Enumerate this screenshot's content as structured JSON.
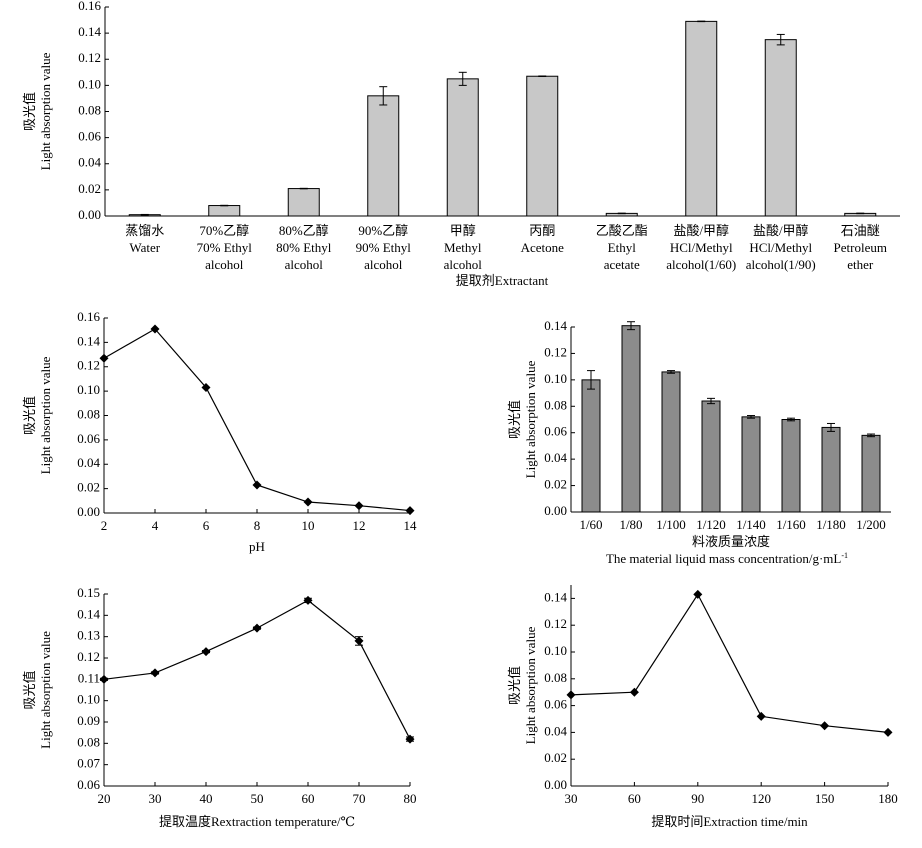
{
  "chart_data": [
    {
      "type": "bar",
      "title": "",
      "xlabel": "提取剂Extractant",
      "ylabel_cn": "吸光值",
      "ylabel": "Light absorption value",
      "ylim": [
        0,
        0.16
      ],
      "yticks": [
        "0.00",
        "0.02",
        "0.04",
        "0.06",
        "0.08",
        "0.10",
        "0.12",
        "0.14",
        "0.16"
      ],
      "bar_color": "#c8c8c8",
      "categories": [
        [
          "蒸馏水",
          "Water"
        ],
        [
          "70%乙醇",
          "70% Ethyl",
          "alcohol"
        ],
        [
          "80%乙醇",
          "80% Ethyl",
          "alcohol"
        ],
        [
          "90%乙醇",
          "90% Ethyl",
          "alcohol"
        ],
        [
          "甲醇",
          "Methyl",
          "alcohol"
        ],
        [
          "丙酮",
          "Acetone"
        ],
        [
          "乙酸乙酯",
          "Ethyl",
          "acetate"
        ],
        [
          "盐酸/甲醇",
          "HCl/Methyl",
          "alcohol(1/60)"
        ],
        [
          "盐酸/甲醇",
          "HCl/Methyl",
          "alcohol(1/90)"
        ],
        [
          "石油醚",
          "Petroleum",
          "ether"
        ]
      ],
      "values": [
        0.001,
        0.008,
        0.021,
        0.092,
        0.105,
        0.107,
        0.002,
        0.149,
        0.135,
        0.002
      ],
      "errors": [
        0.0005,
        0.0008,
        0.0008,
        0.007,
        0.005,
        0.0008,
        0.0003,
        0.0008,
        0.004,
        0.0008
      ]
    },
    {
      "type": "line",
      "xlabel": "pH",
      "ylabel_cn": "吸光值",
      "ylabel": "Light absorption value",
      "xlim": [
        2,
        14
      ],
      "ylim": [
        0,
        0.16
      ],
      "xticks": [
        "2",
        "4",
        "6",
        "8",
        "10",
        "12",
        "14"
      ],
      "yticks": [
        "0.00",
        "0.02",
        "0.04",
        "0.06",
        "0.08",
        "0.10",
        "0.12",
        "0.14",
        "0.16"
      ],
      "x": [
        2,
        4,
        6,
        8,
        10,
        12,
        14
      ],
      "values": [
        0.127,
        0.151,
        0.103,
        0.023,
        0.009,
        0.006,
        0.002
      ]
    },
    {
      "type": "bar",
      "xlabel_cn": "料液质量浓度",
      "xlabel": "The material liquid mass concentration/g·mL",
      "xlabel_sup": "-1",
      "ylabel_cn": "吸光值",
      "ylabel": "Light absorption value",
      "ylim": [
        0,
        0.14
      ],
      "yticks": [
        "0.00",
        "0.02",
        "0.04",
        "0.06",
        "0.08",
        "0.10",
        "0.12",
        "0.14"
      ],
      "bar_color": "#8c8c8c",
      "categories": [
        "1/60",
        "1/80",
        "1/100",
        "1/120",
        "1/140",
        "1/160",
        "1/180",
        "1/200"
      ],
      "values": [
        0.1,
        0.141,
        0.106,
        0.084,
        0.072,
        0.07,
        0.064,
        0.058
      ],
      "errors": [
        0.007,
        0.003,
        0.001,
        0.002,
        0.001,
        0.001,
        0.003,
        0.001
      ]
    },
    {
      "type": "line",
      "xlabel": "提取温度Rextraction temperature/℃",
      "ylabel_cn": "吸光值",
      "ylabel": "Light absorption value",
      "xlim": [
        20,
        80
      ],
      "ylim": [
        0.06,
        0.15
      ],
      "xticks": [
        "20",
        "30",
        "40",
        "50",
        "60",
        "70",
        "80"
      ],
      "yticks": [
        "0.06",
        "0.07",
        "0.08",
        "0.09",
        "0.10",
        "0.11",
        "0.12",
        "0.13",
        "0.14",
        "0.15"
      ],
      "x": [
        20,
        30,
        40,
        50,
        60,
        70,
        80
      ],
      "values": [
        0.11,
        0.113,
        0.123,
        0.134,
        0.147,
        0.128,
        0.082
      ],
      "errors": [
        0.0005,
        0.0005,
        0.0005,
        0.0005,
        0.001,
        0.002,
        0.001
      ]
    },
    {
      "type": "line",
      "xlabel": "提取时间Extraction time/min",
      "ylabel_cn": "吸光值",
      "ylabel": "Light absorption value",
      "xlim": [
        30,
        180
      ],
      "ylim": [
        0,
        0.15
      ],
      "xticks": [
        "30",
        "60",
        "90",
        "120",
        "150",
        "180"
      ],
      "yticks": [
        "0.00",
        "0.02",
        "0.04",
        "0.06",
        "0.08",
        "0.10",
        "0.12",
        "0.14"
      ],
      "ytick_values": [
        0,
        0.02,
        0.04,
        0.06,
        0.08,
        0.1,
        0.12,
        0.14
      ],
      "x": [
        30,
        60,
        90,
        120,
        150,
        180
      ],
      "values": [
        0.068,
        0.07,
        0.143,
        0.052,
        0.045,
        0.04
      ]
    }
  ]
}
